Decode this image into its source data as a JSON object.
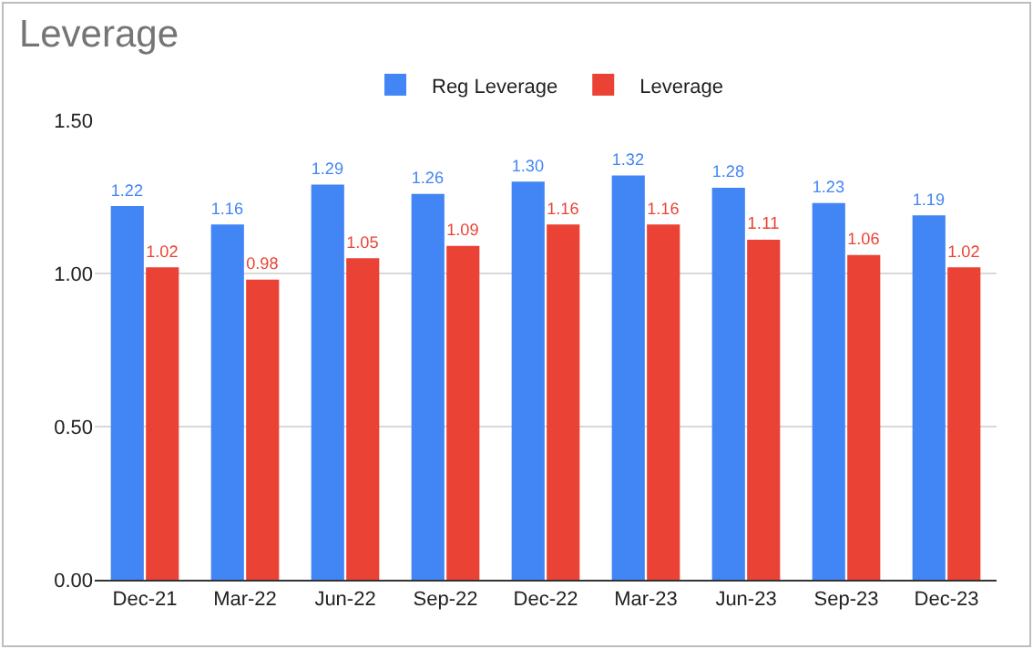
{
  "chart_data": {
    "type": "bar",
    "title": "Leverage",
    "categories": [
      "Dec-21",
      "Mar-22",
      "Jun-22",
      "Sep-22",
      "Dec-22",
      "Mar-23",
      "Jun-23",
      "Sep-23",
      "Dec-23"
    ],
    "series": [
      {
        "name": "Reg Leverage",
        "color": "#4285f4",
        "values": [
          1.22,
          1.16,
          1.29,
          1.26,
          1.3,
          1.32,
          1.28,
          1.23,
          1.19
        ],
        "value_labels": [
          "1.22",
          "1.16",
          "1.29",
          "1.26",
          "1.30",
          "1.32",
          "1.28",
          "1.23",
          "1.19"
        ]
      },
      {
        "name": "Leverage",
        "color": "#ea4335",
        "values": [
          1.02,
          0.98,
          1.05,
          1.09,
          1.16,
          1.16,
          1.11,
          1.06,
          1.02
        ],
        "value_labels": [
          "1.02",
          "0.98",
          "1.05",
          "1.09",
          "1.16",
          "1.16",
          "1.11",
          "1.06",
          "1.02"
        ]
      }
    ],
    "ylim": [
      0,
      1.5
    ],
    "yticks": [
      {
        "value": 0,
        "label": "0.00"
      },
      {
        "value": 0.5,
        "label": "0.50"
      },
      {
        "value": 1,
        "label": "1.00"
      },
      {
        "value": 1.5,
        "label": "1.50"
      }
    ],
    "grid": "y",
    "legend": "top"
  }
}
